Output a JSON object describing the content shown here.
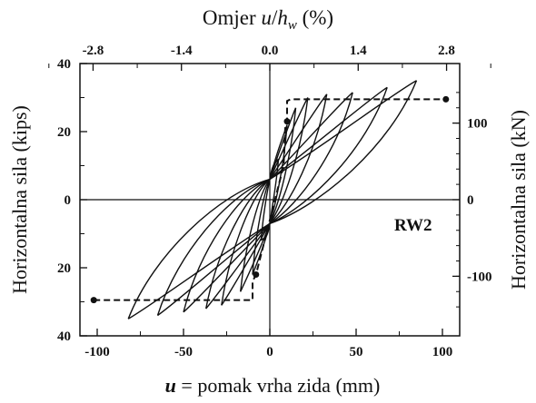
{
  "chart_data": {
    "type": "line",
    "title_parts": [
      "Omjer ",
      "u",
      "/",
      "h",
      "w",
      "  (%)"
    ],
    "xlabel_parts": [
      "u",
      " = pomak vrha zida (mm)"
    ],
    "ylabel_left": "Horizontalna sila (kips)",
    "ylabel_right": "Horizontalna sila (kN)",
    "annotation": "RW2",
    "xlim": [
      -110,
      110
    ],
    "ylim": [
      -40,
      40
    ],
    "x_ticks": [
      "-100",
      "-50",
      "0",
      "50",
      "100"
    ],
    "x_tick_values": [
      -100,
      -50,
      0,
      50,
      100
    ],
    "y_left_ticks": [
      "40",
      "20",
      "0",
      "20",
      "40"
    ],
    "y_left_tick_values": [
      40,
      20,
      0,
      -20,
      -40
    ],
    "x_top_ticks": [
      "-2.8",
      "-1.4",
      "0.0",
      "1.4",
      "2.8"
    ],
    "x_top_tick_values": [
      -102.4,
      -51.2,
      0,
      51.2,
      102.4
    ],
    "y_right_ticks": [
      "100",
      "0",
      "-100"
    ],
    "y_right_tick_values": [
      22.5,
      0,
      -22.5
    ],
    "envelope": [
      [
        -102,
        -29.5
      ],
      [
        -99,
        -29.5
      ],
      [
        -10,
        -29.5
      ],
      [
        -10,
        -24
      ],
      [
        -8,
        -22
      ],
      [
        0,
        -6
      ],
      [
        8,
        10
      ],
      [
        9,
        22
      ],
      [
        10,
        23
      ],
      [
        10,
        29
      ],
      [
        12,
        29.5
      ],
      [
        100,
        29.5
      ],
      [
        102,
        29.5
      ]
    ],
    "envelope_markers": [
      [
        -102,
        -29.5
      ],
      [
        -8,
        -22
      ],
      [
        10,
        23
      ],
      [
        102,
        29.5
      ]
    ],
    "loops": [
      {
        "amp_pos": 5,
        "f_pos": 12,
        "amp_neg": -5,
        "f_neg": -12
      },
      {
        "amp_pos": 10,
        "f_pos": 22,
        "amp_neg": -10,
        "f_neg": -22
      },
      {
        "amp_pos": 15,
        "f_pos": 27,
        "amp_neg": -17,
        "f_neg": -27
      },
      {
        "amp_pos": 22,
        "f_pos": 30,
        "amp_neg": -28,
        "f_neg": -31
      },
      {
        "amp_pos": 33,
        "f_pos": 31,
        "amp_neg": -37,
        "f_neg": -32
      },
      {
        "amp_pos": 48,
        "f_pos": 31.5,
        "amp_neg": -50,
        "f_neg": -33
      },
      {
        "amp_pos": 68,
        "f_pos": 33,
        "amp_neg": -65,
        "f_neg": -34
      },
      {
        "amp_pos": 85,
        "f_pos": 35,
        "amp_neg": -82,
        "f_neg": -35
      }
    ]
  }
}
